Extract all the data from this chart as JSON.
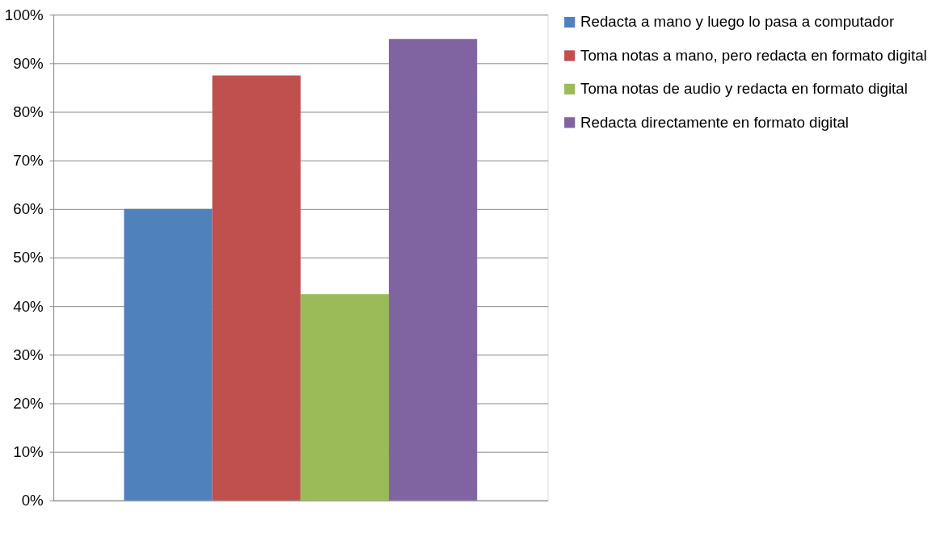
{
  "chart_data": {
    "type": "bar",
    "categories": [
      null
    ],
    "series": [
      {
        "name": "Redacta a mano y luego lo pasa a computador",
        "color": "#4f81bd",
        "values": [
          60
        ]
      },
      {
        "name": "Toma notas a mano, pero redacta en formato digital",
        "color": "#c0504d",
        "values": [
          87.5
        ]
      },
      {
        "name": "Toma notas de audio y redacta en formato digital",
        "color": "#9bbb59",
        "values": [
          42.5
        ]
      },
      {
        "name": "Redacta directamente en formato digital",
        "color": "#8064a2",
        "values": [
          95
        ]
      }
    ],
    "ylim": [
      0,
      100
    ],
    "yticks": [
      {
        "value": 0,
        "label": "0%"
      },
      {
        "value": 10,
        "label": "10%"
      },
      {
        "value": 20,
        "label": "20%"
      },
      {
        "value": 30,
        "label": "30%"
      },
      {
        "value": 40,
        "label": "40%"
      },
      {
        "value": 50,
        "label": "50%"
      },
      {
        "value": 60,
        "label": "60%"
      },
      {
        "value": 70,
        "label": "70%"
      },
      {
        "value": 80,
        "label": "80%"
      },
      {
        "value": 90,
        "label": "90%"
      },
      {
        "value": 100,
        "label": "100%"
      }
    ],
    "grid": "y",
    "legend": "right",
    "tick_labels": "y"
  }
}
